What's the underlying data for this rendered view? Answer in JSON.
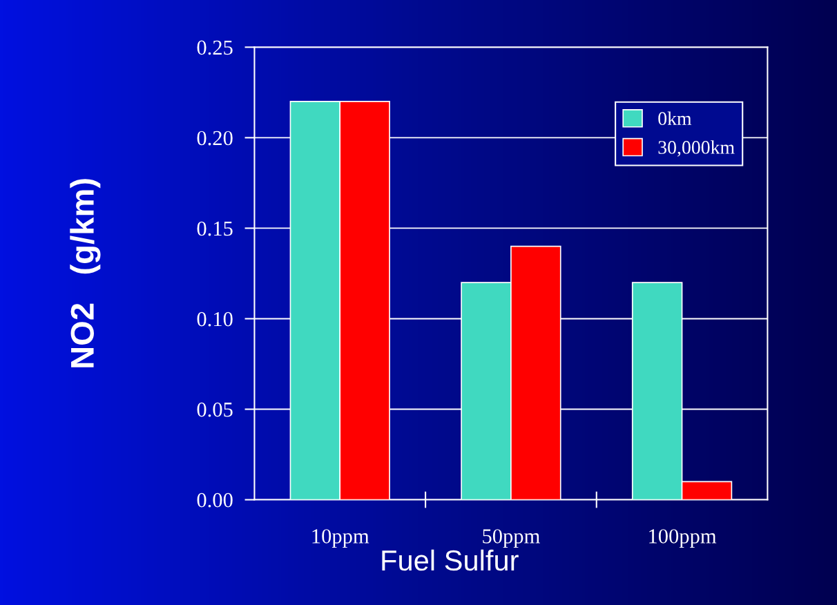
{
  "chart_data": {
    "type": "bar",
    "xlabel": "Fuel Sulfur",
    "ylabel": "NO2   (g/km)",
    "categories": [
      "10ppm",
      "50ppm",
      "100ppm"
    ],
    "series": [
      {
        "name": "0km",
        "color": "#40d9c0",
        "values": [
          0.22,
          0.12,
          0.12
        ]
      },
      {
        "name": "30,000km",
        "color": "#ff0000",
        "values": [
          0.22,
          0.14,
          0.01
        ]
      }
    ],
    "ylim": [
      0,
      0.25
    ],
    "yticks": [
      {
        "value": 0,
        "label": "0.00"
      },
      {
        "value": 0.05,
        "label": "0.05"
      },
      {
        "value": 0.1,
        "label": "0.10"
      },
      {
        "value": 0.15,
        "label": "0.15"
      },
      {
        "value": 0.2,
        "label": "0.20"
      },
      {
        "value": 0.25,
        "label": "0.25"
      }
    ],
    "grid": "y",
    "legend": "top right"
  }
}
